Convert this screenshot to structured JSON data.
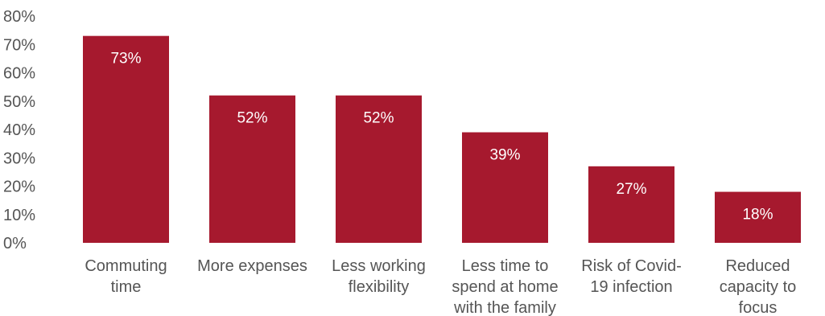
{
  "chart_data": {
    "type": "bar",
    "title": "",
    "xlabel": "",
    "ylabel": "",
    "ylim": [
      0,
      80
    ],
    "yticks": [
      "0%",
      "10%",
      "20%",
      "30%",
      "40%",
      "50%",
      "60%",
      "70%",
      "80%"
    ],
    "grid": false,
    "categories": [
      [
        "Commuting",
        "time"
      ],
      [
        "More expenses"
      ],
      [
        "Less working",
        "flexibility"
      ],
      [
        "Less time to",
        "spend at home",
        "with the family"
      ],
      [
        "Risk of Covid-",
        "19 infection"
      ],
      [
        "Reduced",
        "capacity to",
        "focus"
      ]
    ],
    "values": [
      73,
      52,
      52,
      39,
      27,
      18
    ],
    "data_labels": [
      "73%",
      "52%",
      "52%",
      "39%",
      "27%",
      "18%"
    ],
    "bar_color": "#A6192E",
    "label_color": "#FFFFFF",
    "text_color": "#555555"
  }
}
